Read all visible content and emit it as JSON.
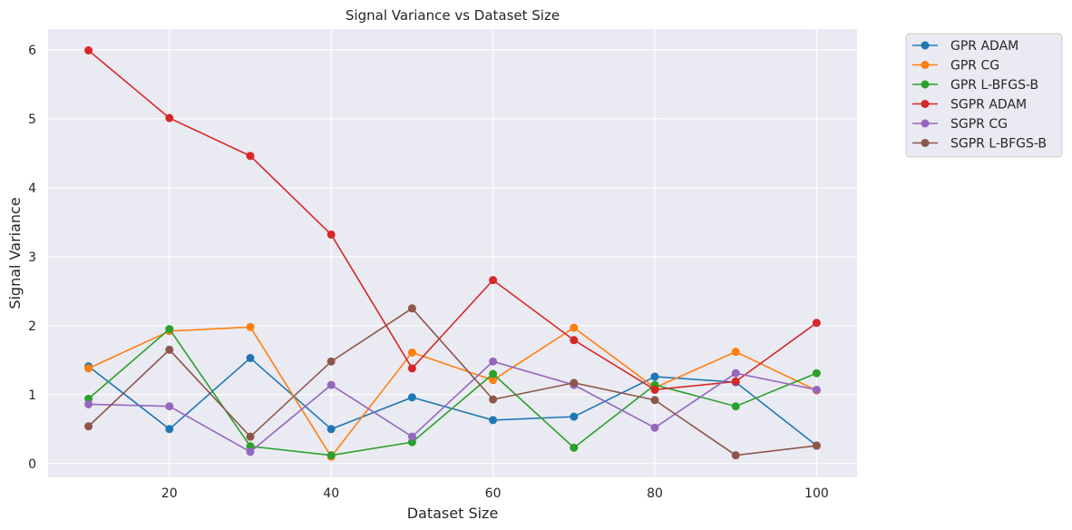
{
  "chart_data": {
    "type": "line",
    "title": "Signal Variance vs Dataset Size",
    "xlabel": "Dataset Size",
    "ylabel": "Signal Variance",
    "x": [
      10,
      20,
      30,
      40,
      50,
      60,
      70,
      80,
      90,
      100
    ],
    "xlim": [
      5,
      105
    ],
    "ylim": [
      -0.2,
      6.3
    ],
    "xticks": [
      20,
      40,
      60,
      80,
      100
    ],
    "yticks": [
      0,
      1,
      2,
      3,
      4,
      5,
      6
    ],
    "grid": true,
    "legend_position": "outside-top-right",
    "markers": true,
    "series": [
      {
        "name": "GPR ADAM",
        "color": "#1f77b4",
        "values": [
          1.41,
          0.5,
          1.53,
          0.5,
          0.96,
          0.63,
          0.68,
          1.26,
          1.18,
          0.26
        ]
      },
      {
        "name": "GPR CG",
        "color": "#ff7f0e",
        "values": [
          1.38,
          1.92,
          1.98,
          0.1,
          1.61,
          1.21,
          1.97,
          1.1,
          1.62,
          1.06
        ]
      },
      {
        "name": "GPR L-BFGS-B",
        "color": "#2ca02c",
        "values": [
          0.94,
          1.95,
          0.25,
          0.12,
          0.31,
          1.3,
          0.23,
          1.14,
          0.83,
          1.31
        ]
      },
      {
        "name": "SGPR ADAM",
        "color": "#d62728",
        "values": [
          5.99,
          5.01,
          4.46,
          3.32,
          1.38,
          2.66,
          1.79,
          1.07,
          1.19,
          2.04
        ]
      },
      {
        "name": "SGPR CG",
        "color": "#9467bd",
        "values": [
          0.86,
          0.83,
          0.17,
          1.14,
          0.39,
          1.48,
          1.14,
          0.52,
          1.31,
          1.07
        ]
      },
      {
        "name": "SGPR L-BFGS-B",
        "color": "#8c564b",
        "values": [
          0.54,
          1.65,
          0.39,
          1.48,
          2.25,
          0.93,
          1.17,
          0.92,
          0.12,
          0.26
        ]
      }
    ]
  }
}
